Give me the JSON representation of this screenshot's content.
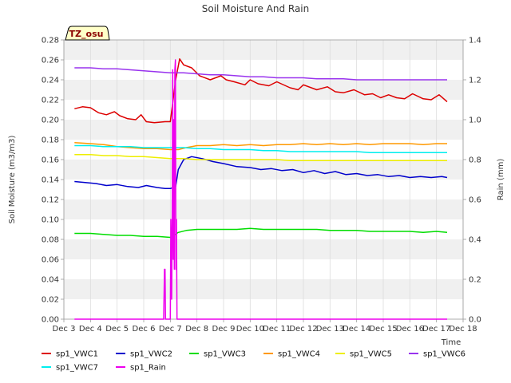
{
  "chart_data": {
    "type": "line",
    "title": "Soil Moisture And Rain",
    "badge": "TZ_osu",
    "xlabel": "Time",
    "ylabel": "Soil Moisture (m3/m3)",
    "y2label": "Rain (mm)",
    "xlim": [
      3,
      18
    ],
    "ylim": [
      0,
      0.28
    ],
    "y2lim": [
      0,
      1.4
    ],
    "x_ticks": [
      {
        "v": 3,
        "label": "Dec 3"
      },
      {
        "v": 4,
        "label": "Dec 4"
      },
      {
        "v": 5,
        "label": "Dec 5"
      },
      {
        "v": 6,
        "label": "Dec 6"
      },
      {
        "v": 7,
        "label": "Dec 7"
      },
      {
        "v": 8,
        "label": "Dec 8"
      },
      {
        "v": 9,
        "label": "Dec 9"
      },
      {
        "v": 10,
        "label": "Dec 10"
      },
      {
        "v": 11,
        "label": "Dec 11"
      },
      {
        "v": 12,
        "label": "Dec 12"
      },
      {
        "v": 13,
        "label": "Dec 13"
      },
      {
        "v": 14,
        "label": "Dec 14"
      },
      {
        "v": 15,
        "label": "Dec 15"
      },
      {
        "v": 16,
        "label": "Dec 16"
      },
      {
        "v": 17,
        "label": "Dec 17"
      },
      {
        "v": 18,
        "label": "Dec 18"
      }
    ],
    "y_ticks": [
      "0.00",
      "0.02",
      "0.04",
      "0.06",
      "0.08",
      "0.10",
      "0.12",
      "0.14",
      "0.16",
      "0.18",
      "0.20",
      "0.22",
      "0.24",
      "0.26",
      "0.28"
    ],
    "y2_ticks": [
      "0.0",
      "0.2",
      "0.4",
      "0.6",
      "0.8",
      "1.0",
      "1.2",
      "1.4"
    ],
    "grid": true,
    "legend_position": "bottom",
    "series": [
      {
        "name": "sp1_VWC1",
        "color": "#dd0000",
        "axis": "left",
        "x": [
          3.4,
          3.7,
          4.0,
          4.3,
          4.6,
          4.9,
          5.1,
          5.4,
          5.7,
          5.9,
          6.1,
          6.4,
          6.8,
          7.0,
          7.2,
          7.35,
          7.5,
          7.8,
          8.1,
          8.5,
          8.9,
          9.1,
          9.4,
          9.8,
          10.0,
          10.3,
          10.7,
          11.0,
          11.5,
          11.8,
          12.0,
          12.5,
          12.9,
          13.2,
          13.5,
          13.9,
          14.3,
          14.6,
          14.9,
          15.2,
          15.5,
          15.8,
          16.1,
          16.5,
          16.8,
          17.1,
          17.4
        ],
        "y": [
          0.211,
          0.213,
          0.212,
          0.207,
          0.205,
          0.208,
          0.204,
          0.201,
          0.2,
          0.205,
          0.198,
          0.197,
          0.198,
          0.198,
          0.24,
          0.261,
          0.255,
          0.252,
          0.244,
          0.24,
          0.244,
          0.24,
          0.238,
          0.235,
          0.24,
          0.236,
          0.234,
          0.238,
          0.232,
          0.23,
          0.235,
          0.23,
          0.233,
          0.228,
          0.227,
          0.23,
          0.225,
          0.226,
          0.222,
          0.225,
          0.222,
          0.221,
          0.226,
          0.221,
          0.22,
          0.225,
          0.218
        ]
      },
      {
        "name": "sp1_VWC2",
        "color": "#0000cc",
        "axis": "left",
        "x": [
          3.4,
          3.8,
          4.2,
          4.6,
          5.0,
          5.4,
          5.8,
          6.1,
          6.5,
          6.8,
          7.0,
          7.2,
          7.3,
          7.5,
          7.8,
          8.2,
          8.6,
          9.0,
          9.5,
          10.0,
          10.4,
          10.8,
          11.2,
          11.6,
          12.0,
          12.4,
          12.8,
          13.2,
          13.6,
          14.0,
          14.4,
          14.8,
          15.2,
          15.6,
          16.0,
          16.4,
          16.8,
          17.2,
          17.4
        ],
        "y": [
          0.138,
          0.137,
          0.136,
          0.134,
          0.135,
          0.133,
          0.132,
          0.134,
          0.132,
          0.131,
          0.131,
          0.133,
          0.15,
          0.16,
          0.163,
          0.161,
          0.158,
          0.156,
          0.153,
          0.152,
          0.15,
          0.151,
          0.149,
          0.15,
          0.147,
          0.149,
          0.146,
          0.148,
          0.145,
          0.146,
          0.144,
          0.145,
          0.143,
          0.144,
          0.142,
          0.143,
          0.142,
          0.143,
          0.142
        ]
      },
      {
        "name": "sp1_VWC3",
        "color": "#00dd00",
        "axis": "left",
        "x": [
          3.4,
          4.0,
          4.5,
          5.0,
          5.5,
          6.0,
          6.5,
          7.0,
          7.3,
          7.6,
          8.0,
          8.5,
          9.0,
          9.5,
          10.0,
          10.5,
          11.0,
          11.5,
          12.0,
          12.5,
          13.0,
          13.5,
          14.0,
          14.5,
          15.0,
          15.5,
          16.0,
          16.5,
          17.0,
          17.4
        ],
        "y": [
          0.086,
          0.086,
          0.085,
          0.084,
          0.084,
          0.083,
          0.083,
          0.082,
          0.087,
          0.089,
          0.09,
          0.09,
          0.09,
          0.09,
          0.091,
          0.09,
          0.09,
          0.09,
          0.09,
          0.09,
          0.089,
          0.089,
          0.089,
          0.088,
          0.088,
          0.088,
          0.088,
          0.087,
          0.088,
          0.087
        ]
      },
      {
        "name": "sp1_VWC4",
        "color": "#ff9900",
        "axis": "left",
        "x": [
          3.4,
          4.0,
          4.5,
          5.0,
          5.5,
          6.0,
          6.5,
          7.0,
          7.3,
          7.6,
          8.0,
          8.5,
          9.0,
          9.5,
          10.0,
          10.5,
          11.0,
          11.5,
          12.0,
          12.5,
          13.0,
          13.5,
          14.0,
          14.5,
          15.0,
          15.5,
          16.0,
          16.5,
          17.0,
          17.4
        ],
        "y": [
          0.177,
          0.176,
          0.175,
          0.173,
          0.172,
          0.171,
          0.171,
          0.17,
          0.17,
          0.172,
          0.174,
          0.174,
          0.175,
          0.174,
          0.175,
          0.174,
          0.175,
          0.175,
          0.176,
          0.175,
          0.176,
          0.175,
          0.176,
          0.175,
          0.176,
          0.176,
          0.176,
          0.175,
          0.176,
          0.176
        ]
      },
      {
        "name": "sp1_VWC5",
        "color": "#eeee00",
        "axis": "left",
        "x": [
          3.4,
          4.0,
          4.5,
          5.0,
          5.5,
          6.0,
          6.5,
          7.0,
          7.5,
          8.0,
          8.5,
          9.0,
          9.5,
          10.0,
          10.5,
          11.0,
          11.5,
          12.0,
          12.5,
          13.0,
          13.5,
          14.0,
          14.5,
          15.0,
          15.5,
          16.0,
          16.5,
          17.0,
          17.4
        ],
        "y": [
          0.165,
          0.165,
          0.164,
          0.164,
          0.163,
          0.163,
          0.162,
          0.161,
          0.161,
          0.16,
          0.16,
          0.16,
          0.16,
          0.16,
          0.16,
          0.16,
          0.159,
          0.159,
          0.159,
          0.159,
          0.159,
          0.159,
          0.159,
          0.159,
          0.159,
          0.159,
          0.159,
          0.159,
          0.159
        ]
      },
      {
        "name": "sp1_VWC6",
        "color": "#9933ee",
        "axis": "left",
        "x": [
          3.4,
          4.0,
          4.5,
          5.0,
          5.5,
          6.0,
          6.5,
          7.0,
          7.5,
          8.0,
          8.5,
          9.0,
          9.5,
          10.0,
          10.5,
          11.0,
          11.5,
          12.0,
          12.5,
          13.0,
          13.5,
          14.0,
          14.5,
          15.0,
          15.5,
          16.0,
          16.5,
          17.0,
          17.4
        ],
        "y": [
          0.252,
          0.252,
          0.251,
          0.251,
          0.25,
          0.249,
          0.248,
          0.247,
          0.247,
          0.246,
          0.245,
          0.245,
          0.244,
          0.243,
          0.243,
          0.242,
          0.242,
          0.242,
          0.241,
          0.241,
          0.241,
          0.24,
          0.24,
          0.24,
          0.24,
          0.24,
          0.24,
          0.24,
          0.24
        ]
      },
      {
        "name": "sp1_VWC7",
        "color": "#00eeee",
        "axis": "left",
        "x": [
          3.4,
          4.0,
          4.5,
          5.0,
          5.5,
          6.0,
          6.5,
          7.0,
          7.5,
          8.0,
          8.5,
          9.0,
          9.5,
          10.0,
          10.5,
          11.0,
          11.5,
          12.0,
          12.5,
          13.0,
          13.5,
          14.0,
          14.5,
          15.0,
          15.5,
          16.0,
          16.5,
          17.0,
          17.4
        ],
        "y": [
          0.174,
          0.174,
          0.173,
          0.173,
          0.173,
          0.172,
          0.172,
          0.172,
          0.172,
          0.171,
          0.171,
          0.17,
          0.17,
          0.17,
          0.169,
          0.169,
          0.168,
          0.168,
          0.168,
          0.168,
          0.168,
          0.168,
          0.167,
          0.167,
          0.167,
          0.167,
          0.167,
          0.167,
          0.167
        ]
      },
      {
        "name": "sp1_Rain",
        "color": "#ee00ee",
        "axis": "right",
        "x": [
          3.4,
          6.75,
          6.78,
          6.8,
          6.82,
          6.85,
          7.0,
          7.02,
          7.05,
          7.07,
          7.09,
          7.11,
          7.13,
          7.15,
          7.17,
          7.19,
          7.21,
          7.23,
          7.25,
          7.3,
          17.4
        ],
        "y": [
          0,
          0,
          0.25,
          0.25,
          0,
          0,
          0,
          0.5,
          0.1,
          0.5,
          1.25,
          0.3,
          1.0,
          0.25,
          1.25,
          1.3,
          0.25,
          0.5,
          0,
          0,
          0
        ]
      }
    ]
  }
}
